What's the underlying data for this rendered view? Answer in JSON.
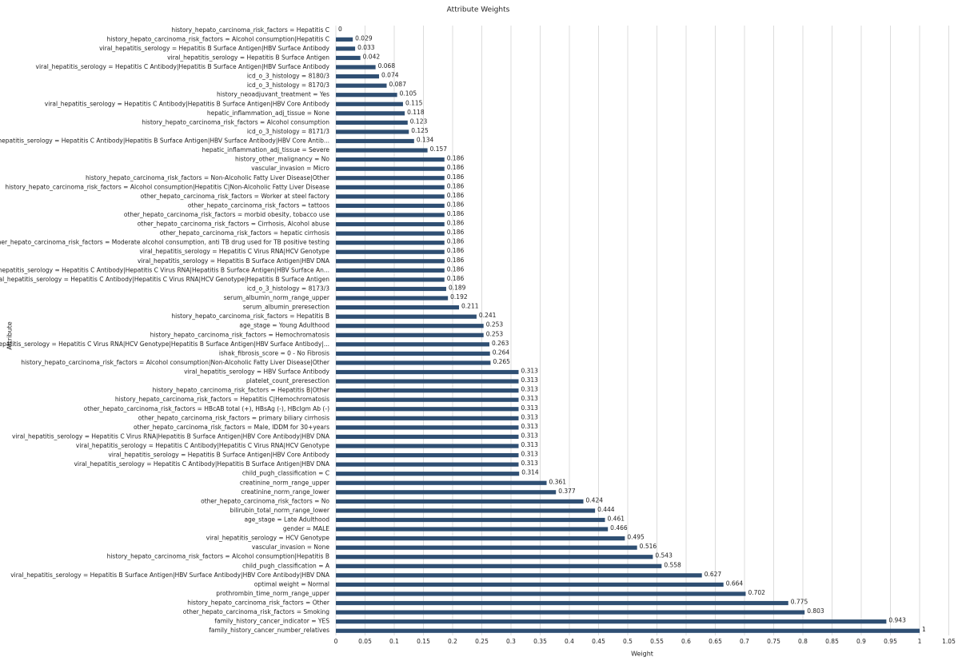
{
  "chart_data": {
    "type": "barh",
    "title": "Attribute Weights",
    "x_label": "Weight",
    "y_label": "Attribute",
    "categories": [
      "history_hepato_carcinoma_risk_factors = Hepatitis C",
      "history_hepato_carcinoma_risk_factors = Alcohol consumption|Hepatitis C",
      "viral_hepatitis_serology = Hepatitis B Surface Antigen|HBV Surface Antibody",
      "viral_hepatitis_serology = Hepatitis B Surface Antigen",
      "viral_hepatitis_serology = Hepatitis C Antibody|Hepatitis B Surface Antigen|HBV Surface Antibody",
      "icd_o_3_histology = 8180/3",
      "icd_o_3_histology = 8170/3",
      "history_neoadjuvant_treatment = Yes",
      "viral_hepatitis_serology = Hepatitis C Antibody|Hepatitis B Surface Antigen|HBV Core Antibody",
      "hepatic_inflammation_adj_tissue = None",
      "history_hepato_carcinoma_risk_factors = Alcohol consumption",
      "icd_o_3_histology = 8171/3",
      "viral_hepatitis_serology = Hepatitis C Antibody|Hepatitis B Surface Antigen|HBV Surface Antibody|HBV Core Antib...",
      "hepatic_inflammation_adj_tissue = Severe",
      "history_other_malignancy = No",
      "vascular_invasion = Micro",
      "history_hepato_carcinoma_risk_factors = Non-Alcoholic Fatty Liver Disease|Other",
      "history_hepato_carcinoma_risk_factors = Alcohol consumption|Hepatitis C|Non-Alcoholic Fatty Liver Disease",
      "other_hepato_carcinoma_risk_factors = Worker at steel factory",
      "other_hepato_carcinoma_risk_factors = tattoos",
      "other_hepato_carcinoma_risk_factors = morbid obesity, tobacco use",
      "other_hepato_carcinoma_risk_factors = Cirrhosis, Alcohol abuse",
      "other_hepato_carcinoma_risk_factors = hepatic cirrhosis",
      "other_hepato_carcinoma_risk_factors = Moderate alcohol consumption, anti TB drug used for TB positive testing",
      "viral_hepatitis_serology = Hepatitis C Virus RNA|HCV Genotype",
      "viral_hepatitis_serology = Hepatitis B Surface Antigen|HBV DNA",
      "viral_hepatitis_serology = Hepatitis C Antibody|Hepatitis C Virus RNA|Hepatitis B Surface Antigen|HBV Surface An...",
      "viral_hepatitis_serology = Hepatitis C Antibody|Hepatitis C Virus RNA|HCV Genotype|Hepatitis B Surface Antigen",
      "icd_o_3_histology = 8173/3",
      "serum_albumin_norm_range_upper",
      "serum_albumin_preresection",
      "history_hepato_carcinoma_risk_factors = Hepatitis B",
      "age_stage = Young Adulthood",
      "history_hepato_carcinoma_risk_factors = Hemochromatosis",
      "viral_hepatitis_serology = Hepatitis C Virus RNA|HCV Genotype|Hepatitis B Surface Antigen|HBV Surface Antibody|...",
      "ishak_fibrosis_score = 0 - No Fibrosis",
      "history_hepato_carcinoma_risk_factors = Alcohol consumption|Non-Alcoholic Fatty Liver Disease|Other",
      "viral_hepatitis_serology = HBV Surface Antibody",
      "platelet_count_preresection",
      "history_hepato_carcinoma_risk_factors = Hepatitis B|Other",
      "history_hepato_carcinoma_risk_factors = Hepatitis C|Hemochromatosis",
      "other_hepato_carcinoma_risk_factors = HBcAB total (+), HBsAg (-), HBcIgm Ab (-)",
      "other_hepato_carcinoma_risk_factors = primary biliary cirrhosis",
      "other_hepato_carcinoma_risk_factors = Male, IDDM for 30+years",
      "viral_hepatitis_serology = Hepatitis C Virus RNA|Hepatitis B Surface Antigen|HBV Core Antibody|HBV DNA",
      "viral_hepatitis_serology = Hepatitis C Antibody|Hepatitis C Virus RNA|HCV Genotype",
      "viral_hepatitis_serology = Hepatitis B Surface Antigen|HBV Core Antibody",
      "viral_hepatitis_serology = Hepatitis C Antibody|Hepatitis B Surface Antigen|HBV DNA",
      "child_pugh_classification = C",
      "creatinine_norm_range_upper",
      "creatinine_norm_range_lower",
      "other_hepato_carcinoma_risk_factors = No",
      "bilirubin_total_norm_range_lower",
      "age_stage = Late Adulthood",
      "gender = MALE",
      "viral_hepatitis_serology = HCV Genotype",
      "vascular_invasion = None",
      "history_hepato_carcinoma_risk_factors = Alcohol consumption|Hepatitis B",
      "child_pugh_classification = A",
      "viral_hepatitis_serology = Hepatitis B Surface Antigen|HBV Surface Antibody|HBV Core Antibody|HBV DNA",
      "optimal weight = Normal",
      "prothrombin_time_norm_range_upper",
      "history_hepato_carcinoma_risk_factors = Other",
      "other_hepato_carcinoma_risk_factors = Smoking",
      "family_history_cancer_indicator = YES",
      "family_history_cancer_number_relatives"
    ],
    "values": [
      0,
      0.029,
      0.033,
      0.042,
      0.068,
      0.074,
      0.087,
      0.105,
      0.115,
      0.118,
      0.123,
      0.125,
      0.134,
      0.157,
      0.186,
      0.186,
      0.186,
      0.186,
      0.186,
      0.186,
      0.186,
      0.186,
      0.186,
      0.186,
      0.186,
      0.186,
      0.186,
      0.186,
      0.189,
      0.192,
      0.211,
      0.241,
      0.253,
      0.253,
      0.263,
      0.264,
      0.265,
      0.313,
      0.313,
      0.313,
      0.313,
      0.313,
      0.313,
      0.313,
      0.313,
      0.313,
      0.313,
      0.313,
      0.314,
      0.361,
      0.377,
      0.424,
      0.444,
      0.461,
      0.466,
      0.495,
      0.516,
      0.543,
      0.558,
      0.627,
      0.664,
      0.702,
      0.775,
      0.803,
      0.943,
      1
    ],
    "color": "#2f4f73",
    "xlim": [
      0,
      1.05
    ],
    "xticks": [
      0,
      0.05,
      0.1,
      0.15,
      0.2,
      0.25,
      0.3,
      0.35,
      0.4,
      0.45,
      0.5,
      0.55,
      0.6,
      0.65,
      0.7,
      0.75,
      0.8,
      0.85,
      0.9,
      0.95,
      1,
      1.05
    ],
    "grid": true
  }
}
